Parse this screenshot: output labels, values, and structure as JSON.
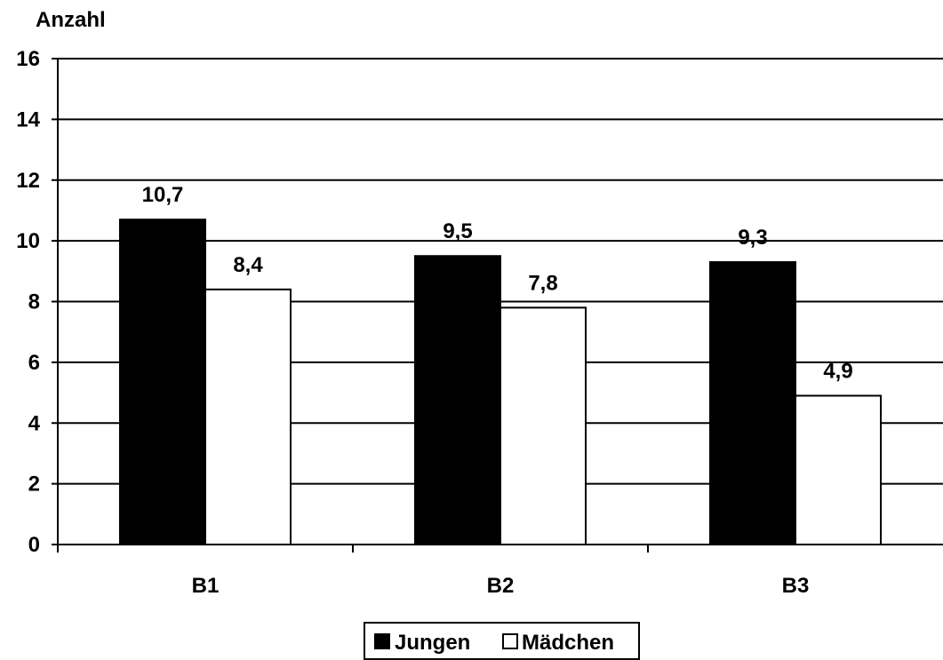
{
  "chart_data": {
    "type": "bar",
    "ylabel": "Anzahl",
    "categories": [
      "B1",
      "B2",
      "B3"
    ],
    "series": [
      {
        "name": "Jungen",
        "values": [
          10.7,
          9.5,
          9.3
        ],
        "color": "#000000",
        "labels": [
          "10,7",
          "9,5",
          "9,3"
        ]
      },
      {
        "name": "Mädchen",
        "values": [
          8.4,
          7.8,
          4.9
        ],
        "color": "#ffffff",
        "labels": [
          "8,4",
          "7,8",
          "4,9"
        ]
      }
    ],
    "ylim": [
      0,
      16
    ],
    "yticks": [
      0,
      2,
      4,
      6,
      8,
      10,
      12,
      14,
      16
    ],
    "ytick_labels": [
      "0",
      "2",
      "4",
      "6",
      "8",
      "10",
      "12",
      "14",
      "16"
    ],
    "grid": true,
    "legend_position": "bottom-center"
  }
}
